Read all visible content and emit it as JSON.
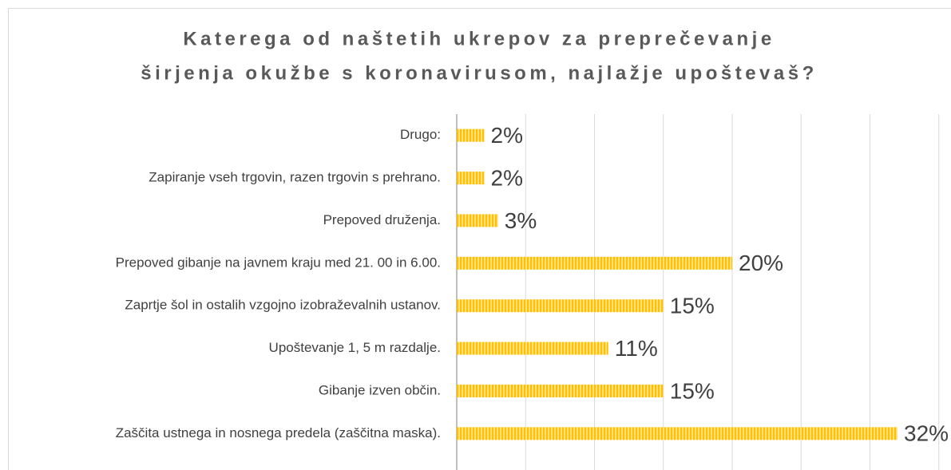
{
  "chart_data": {
    "type": "bar",
    "orientation": "horizontal",
    "title": [
      "Katerega od naštetih ukrepov za preprečevanje",
      "širjenja okužbe s koronavirusom, najlažje upoštevaš?"
    ],
    "categories": [
      "Drugo:",
      "Zapiranje vseh trgovin, razen trgovin s prehrano.",
      "Prepoved druženja.",
      "Prepoved gibanje na javnem kraju med 21. 00 in 6.00.",
      "Zaprtje šol in ostalih vzgojno izobraževalnih ustanov.",
      "Upoštevanje 1, 5 m razdalje.",
      "Gibanje izven občin.",
      "Zaščita ustnega in nosnega predela (zaščitna maska)."
    ],
    "values": [
      2,
      2,
      3,
      20,
      15,
      11,
      15,
      32
    ],
    "value_labels": [
      "2%",
      "2%",
      "3%",
      "20%",
      "15%",
      "11%",
      "15%",
      "32%"
    ],
    "color": "#ffc000",
    "xlim": [
      0,
      35
    ],
    "xticks": [
      0,
      5,
      10,
      15,
      20,
      25,
      30,
      35
    ],
    "grid": true
  }
}
